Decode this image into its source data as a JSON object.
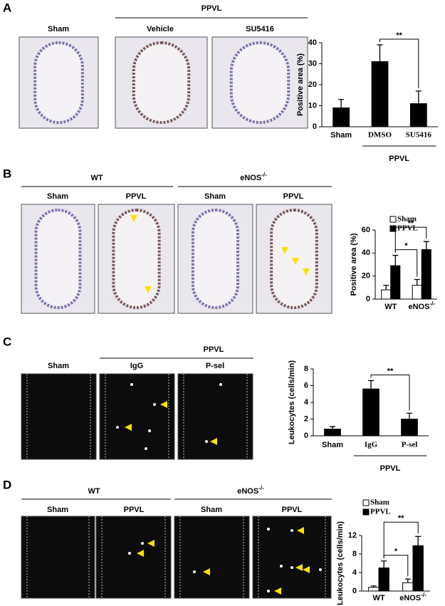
{
  "figure": {
    "panels": [
      {
        "label": "A",
        "group": "PPVL",
        "columns": [
          "Sham",
          "Vehicle",
          "SU5416"
        ]
      },
      {
        "label": "B",
        "groups": [
          "WT",
          "eNOS-/-"
        ],
        "columns": [
          "Sham",
          "PPVL",
          "Sham",
          "PPVL"
        ]
      },
      {
        "label": "C",
        "group": "PPVL",
        "columns": [
          "Sham",
          "IgG",
          "P-sel"
        ]
      },
      {
        "label": "D",
        "groups": [
          "WT",
          "eNOS-/-"
        ],
        "columns": [
          "Sham",
          "PPVL",
          "Sham",
          "PPVL"
        ]
      }
    ]
  },
  "chart_data": [
    {
      "type": "bar",
      "y_label": "Positive area (%)",
      "categories": [
        "Sham",
        "DMSO",
        "SU5416"
      ],
      "values": [
        9,
        31,
        11
      ],
      "errors": [
        4,
        8,
        6
      ],
      "color": "#000000",
      "group_label": "PPVL",
      "annotations": [
        "**"
      ],
      "ylim": [
        0,
        40
      ],
      "yticks": [
        0,
        10,
        20,
        30,
        40
      ]
    },
    {
      "type": "grouped_bar",
      "y_label": "Positive area (%)",
      "categories": [
        "WT",
        "eNOS-/-"
      ],
      "series": [
        {
          "name": "Sham",
          "color": "#ffffff",
          "values": [
            8,
            12
          ],
          "errors": [
            4,
            5
          ]
        },
        {
          "name": "PPVL",
          "color": "#000000",
          "values": [
            29,
            43
          ],
          "errors": [
            9,
            7
          ]
        }
      ],
      "annotations": [
        "*",
        "**"
      ],
      "ylim": [
        0,
        60
      ],
      "yticks": [
        0,
        20,
        40,
        60
      ]
    },
    {
      "type": "bar",
      "y_label": "Leukocytes (cells/min)",
      "categories": [
        "Sham",
        "IgG",
        "P-sel"
      ],
      "values": [
        0.8,
        5.6,
        2.0
      ],
      "errors": [
        0.3,
        1.0,
        0.7
      ],
      "color": "#000000",
      "group_label": "PPVL",
      "annotations": [
        "**"
      ],
      "ylim": [
        0,
        8
      ],
      "yticks": [
        0,
        2,
        4,
        6,
        8
      ]
    },
    {
      "type": "grouped_bar",
      "y_label": "Leukocytes (cells/min)",
      "categories": [
        "WT",
        "eNOS-/-"
      ],
      "series": [
        {
          "name": "Sham",
          "color": "#ffffff",
          "values": [
            0.8,
            1.8
          ],
          "errors": [
            0.3,
            0.8
          ]
        },
        {
          "name": "PPVL",
          "color": "#000000",
          "values": [
            5,
            9.8
          ],
          "errors": [
            1.5,
            2
          ]
        }
      ],
      "annotations": [
        "*",
        "**"
      ],
      "ylim": [
        0,
        12
      ],
      "yticks": [
        0,
        4,
        8,
        12
      ]
    }
  ]
}
